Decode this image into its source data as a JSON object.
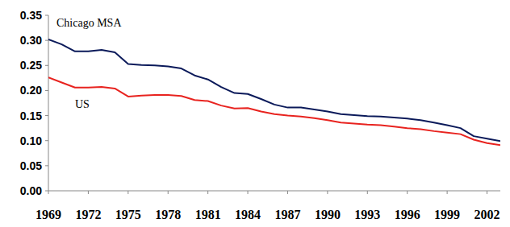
{
  "chart_data": {
    "type": "line",
    "x": [
      1969,
      1970,
      1971,
      1972,
      1973,
      1974,
      1975,
      1976,
      1977,
      1978,
      1979,
      1980,
      1981,
      1982,
      1983,
      1984,
      1985,
      1986,
      1987,
      1988,
      1989,
      1990,
      1991,
      1992,
      1993,
      1994,
      1995,
      1996,
      1997,
      1998,
      1999,
      2000,
      2001,
      2002,
      2003
    ],
    "series": [
      {
        "name": "Chicago MSA",
        "color": "#0b1a5a",
        "values": [
          0.302,
          0.292,
          0.278,
          0.278,
          0.281,
          0.276,
          0.253,
          0.251,
          0.25,
          0.248,
          0.244,
          0.23,
          0.222,
          0.207,
          0.195,
          0.193,
          0.183,
          0.172,
          0.166,
          0.166,
          0.162,
          0.158,
          0.153,
          0.151,
          0.149,
          0.148,
          0.146,
          0.144,
          0.141,
          0.136,
          0.131,
          0.125,
          0.109,
          0.104,
          0.099
        ]
      },
      {
        "name": "US",
        "color": "#e8231f",
        "values": [
          0.226,
          0.216,
          0.206,
          0.206,
          0.207,
          0.204,
          0.188,
          0.19,
          0.191,
          0.191,
          0.189,
          0.181,
          0.179,
          0.17,
          0.164,
          0.165,
          0.158,
          0.153,
          0.15,
          0.148,
          0.145,
          0.141,
          0.136,
          0.134,
          0.132,
          0.131,
          0.128,
          0.125,
          0.123,
          0.119,
          0.116,
          0.113,
          0.102,
          0.095,
          0.091
        ]
      }
    ],
    "xlim": [
      1969,
      2003
    ],
    "xticks": [
      1969,
      1972,
      1975,
      1978,
      1981,
      1984,
      1987,
      1990,
      1993,
      1996,
      1999,
      2002
    ],
    "ylim": [
      0,
      0.35
    ],
    "yticks": [
      {
        "value": 0,
        "label": "0.00"
      },
      0.05,
      {
        "value": 0.1,
        "label": "0.10"
      },
      0.15,
      {
        "value": 0.2,
        "label": "0.20"
      },
      0.25,
      {
        "value": 0.3,
        "label": "0.30"
      },
      0.35
    ],
    "grid": false
  }
}
